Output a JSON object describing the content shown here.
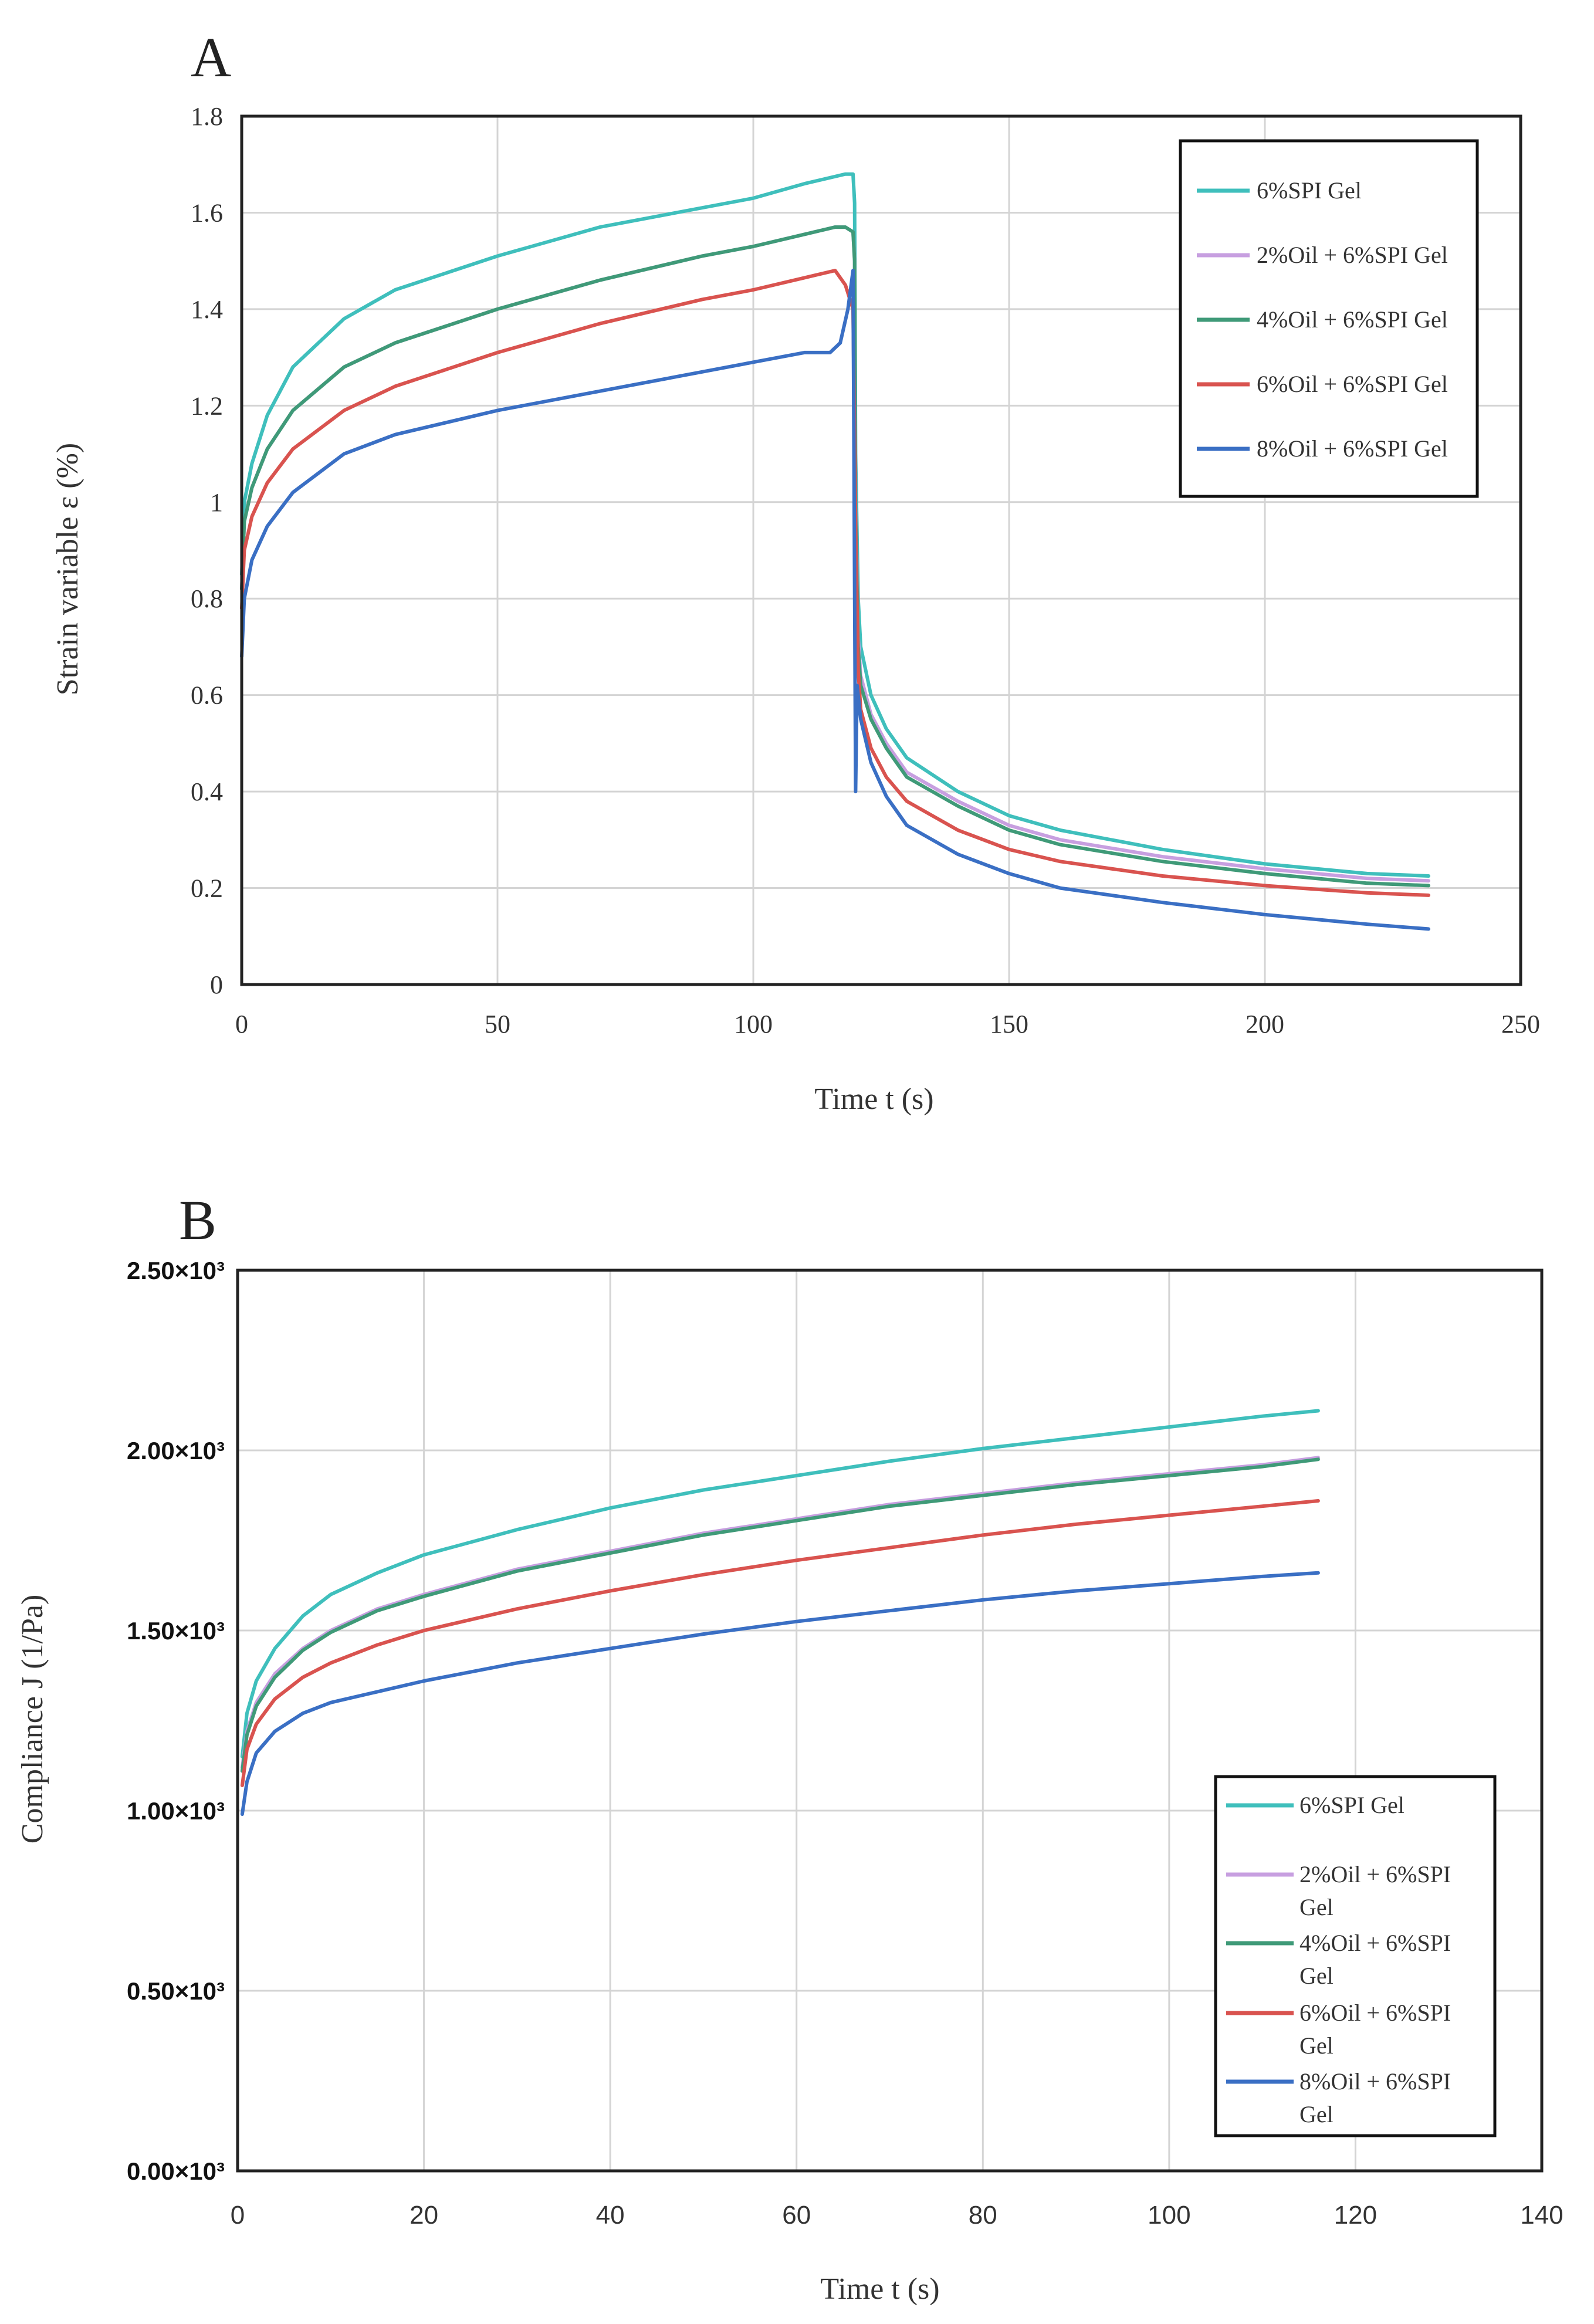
{
  "chart_data": [
    {
      "panel": "A",
      "type": "line",
      "title": "",
      "xlabel": "Time t (s)",
      "ylabel": "Strain variable ε (%)",
      "xlim": [
        0,
        250
      ],
      "ylim": [
        0,
        1.8
      ],
      "xticks": [
        0,
        50,
        100,
        150,
        200,
        250
      ],
      "xtick_labels": [
        "0",
        "50",
        "100",
        "150",
        "200",
        "250"
      ],
      "yticks": [
        0,
        0.2,
        0.4,
        0.6,
        0.8,
        1,
        1.2,
        1.4,
        1.6,
        1.8
      ],
      "ytick_labels": [
        "0",
        "0.2",
        "0.4",
        "0.6",
        "0.8",
        "1",
        "1.2",
        "1.4",
        "1.6",
        "1.8"
      ],
      "grid": true,
      "legend_position": "top-right",
      "series": [
        {
          "name": "6%SPI Gel",
          "color": "#3fbfbc",
          "x": [
            0,
            0.5,
            2,
            5,
            10,
            20,
            30,
            50,
            70,
            90,
            100,
            110,
            118,
            119.5,
            119.8,
            120,
            120.5,
            121,
            123,
            126,
            130,
            140,
            150,
            160,
            180,
            200,
            220,
            232
          ],
          "y": [
            0.85,
            1.0,
            1.08,
            1.18,
            1.28,
            1.38,
            1.44,
            1.51,
            1.57,
            1.61,
            1.63,
            1.66,
            1.68,
            1.68,
            1.62,
            1.1,
            0.8,
            0.7,
            0.6,
            0.53,
            0.47,
            0.4,
            0.35,
            0.32,
            0.28,
            0.25,
            0.23,
            0.225
          ]
        },
        {
          "name": "2%Oil + 6%SPI Gel",
          "color": "#c79fe0",
          "x": [
            0,
            0.5,
            2,
            5,
            10,
            20,
            30,
            50,
            70,
            90,
            100,
            110,
            116,
            118,
            119.5,
            119.8,
            120,
            120.5,
            121,
            123,
            126,
            130,
            140,
            150,
            160,
            180,
            200,
            220,
            232
          ],
          "y": [
            0.82,
            0.96,
            1.03,
            1.11,
            1.19,
            1.28,
            1.33,
            1.4,
            1.46,
            1.51,
            1.53,
            1.555,
            1.57,
            1.57,
            1.56,
            1.5,
            1.0,
            0.72,
            0.64,
            0.56,
            0.5,
            0.44,
            0.38,
            0.33,
            0.3,
            0.265,
            0.24,
            0.22,
            0.215
          ]
        },
        {
          "name": "4%Oil + 6%SPI Gel",
          "color": "#3f9a78",
          "x": [
            0,
            0.5,
            2,
            5,
            10,
            20,
            30,
            50,
            70,
            90,
            100,
            110,
            116,
            118,
            119.5,
            119.8,
            120,
            120.5,
            121,
            123,
            126,
            130,
            140,
            150,
            160,
            180,
            200,
            220,
            232
          ],
          "y": [
            0.82,
            0.96,
            1.03,
            1.11,
            1.19,
            1.28,
            1.33,
            1.4,
            1.46,
            1.51,
            1.53,
            1.555,
            1.57,
            1.57,
            1.56,
            1.5,
            0.98,
            0.7,
            0.62,
            0.55,
            0.49,
            0.43,
            0.37,
            0.32,
            0.29,
            0.255,
            0.23,
            0.21,
            0.205
          ]
        },
        {
          "name": "6%Oil + 6%SPI Gel",
          "color": "#d9534f",
          "x": [
            0,
            0.5,
            2,
            5,
            10,
            20,
            30,
            50,
            70,
            90,
            100,
            110,
            116,
            118,
            119.5,
            120,
            120.5,
            121,
            123,
            126,
            130,
            140,
            150,
            160,
            180,
            200,
            220,
            232
          ],
          "y": [
            0.78,
            0.9,
            0.97,
            1.04,
            1.11,
            1.19,
            1.24,
            1.31,
            1.37,
            1.42,
            1.44,
            1.465,
            1.48,
            1.45,
            1.4,
            0.95,
            0.65,
            0.57,
            0.49,
            0.43,
            0.38,
            0.32,
            0.28,
            0.255,
            0.225,
            0.205,
            0.19,
            0.185
          ]
        },
        {
          "name": "8%Oil + 6%SPI Gel",
          "color": "#3a6fc4",
          "x": [
            0,
            0.5,
            2,
            5,
            10,
            20,
            30,
            50,
            70,
            90,
            100,
            110,
            115,
            117,
            118.5,
            119.5,
            120,
            120.1,
            120.3,
            121,
            123,
            126,
            130,
            140,
            150,
            160,
            180,
            200,
            220,
            232
          ],
          "y": [
            0.68,
            0.8,
            0.88,
            0.95,
            1.02,
            1.1,
            1.14,
            1.19,
            1.23,
            1.27,
            1.29,
            1.31,
            1.31,
            1.33,
            1.4,
            1.48,
            0.4,
            0.48,
            0.62,
            0.55,
            0.46,
            0.39,
            0.33,
            0.27,
            0.23,
            0.2,
            0.17,
            0.145,
            0.125,
            0.115
          ]
        }
      ]
    },
    {
      "panel": "B",
      "type": "line",
      "title": "",
      "xlabel": "Time t (s)",
      "ylabel": "Compliance J (1/Pa)",
      "xlim": [
        0,
        140
      ],
      "ylim": [
        0,
        2500
      ],
      "xticks": [
        0,
        20,
        40,
        60,
        80,
        100,
        120,
        140
      ],
      "xtick_labels": [
        "0",
        "20",
        "40",
        "60",
        "80",
        "100",
        "120",
        "140"
      ],
      "yticks": [
        0,
        500,
        1000,
        1500,
        2000,
        2500
      ],
      "ytick_labels": [
        "0.00×10³",
        "0.50×10³",
        "1.00×10³",
        "1.50×10³",
        "2.00×10³",
        "2.50×10³"
      ],
      "grid": true,
      "legend_position": "bottom-right",
      "series": [
        {
          "name": "6%SPI Gel",
          "color": "#3fbfbc",
          "x": [
            0.5,
            1,
            2,
            4,
            7,
            10,
            15,
            20,
            30,
            40,
            50,
            60,
            70,
            80,
            90,
            100,
            110,
            116
          ],
          "y": [
            1150,
            1270,
            1360,
            1450,
            1540,
            1600,
            1660,
            1710,
            1780,
            1840,
            1890,
            1930,
            1970,
            2005,
            2035,
            2065,
            2095,
            2110
          ]
        },
        {
          "name": "2%Oil + 6%SPI Gel",
          "color": "#c79fe0",
          "x": [
            0.5,
            1,
            2,
            4,
            7,
            10,
            15,
            20,
            30,
            40,
            50,
            60,
            70,
            80,
            90,
            100,
            110,
            116
          ],
          "y": [
            1120,
            1220,
            1300,
            1380,
            1450,
            1500,
            1560,
            1600,
            1670,
            1720,
            1770,
            1810,
            1850,
            1880,
            1910,
            1935,
            1960,
            1980
          ]
        },
        {
          "name": "4%Oil + 6%SPI Gel",
          "color": "#3f9a78",
          "x": [
            0.5,
            1,
            2,
            4,
            7,
            10,
            15,
            20,
            30,
            40,
            50,
            60,
            70,
            80,
            90,
            100,
            110,
            116
          ],
          "y": [
            1110,
            1210,
            1290,
            1370,
            1445,
            1495,
            1555,
            1595,
            1665,
            1715,
            1765,
            1805,
            1845,
            1875,
            1905,
            1930,
            1955,
            1975
          ]
        },
        {
          "name": "6%Oil + 6%SPI Gel",
          "color": "#d9534f",
          "x": [
            0.5,
            1,
            2,
            4,
            7,
            10,
            15,
            20,
            30,
            40,
            50,
            60,
            70,
            80,
            90,
            100,
            110,
            116
          ],
          "y": [
            1070,
            1170,
            1240,
            1310,
            1370,
            1410,
            1460,
            1500,
            1560,
            1610,
            1655,
            1695,
            1730,
            1765,
            1795,
            1820,
            1845,
            1860
          ]
        },
        {
          "name": "8%Oil + 6%SPI Gel",
          "color": "#3a6fc4",
          "x": [
            0.5,
            1,
            2,
            4,
            7,
            10,
            15,
            20,
            30,
            40,
            50,
            60,
            70,
            80,
            90,
            100,
            110,
            116
          ],
          "y": [
            990,
            1080,
            1160,
            1220,
            1270,
            1300,
            1330,
            1360,
            1410,
            1450,
            1490,
            1525,
            1555,
            1585,
            1610,
            1630,
            1650,
            1660
          ]
        }
      ]
    }
  ],
  "legend_b_lines": [
    [
      "6%SPI Gel"
    ],
    [
      "2%Oil + 6%SPI",
      "Gel"
    ],
    [
      "4%Oil + 6%SPI",
      "Gel"
    ],
    [
      "6%Oil + 6%SPI",
      "Gel"
    ],
    [
      "8%Oil + 6%SPI",
      "Gel"
    ]
  ]
}
